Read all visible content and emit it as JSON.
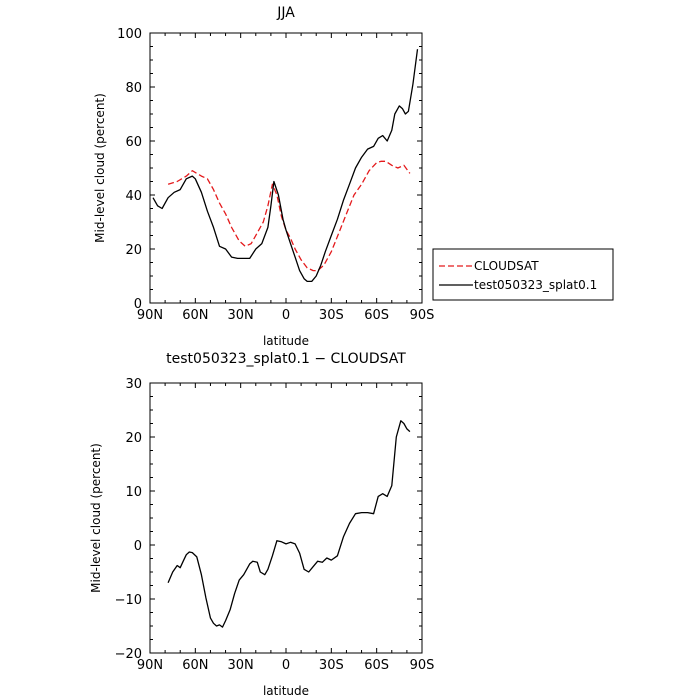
{
  "chart_data": [
    {
      "type": "line",
      "title": "JJA",
      "xlabel": "latitude",
      "ylabel": "Mid-level cloud (percent)",
      "xlim": [
        90,
        -90
      ],
      "ylim": [
        0,
        100
      ],
      "xticks": [
        90,
        60,
        30,
        0,
        -30,
        -60,
        -90
      ],
      "xtick_labels": [
        "90N",
        "60N",
        "30N",
        "0",
        "30S",
        "60S",
        "90S"
      ],
      "yticks": [
        0,
        20,
        40,
        60,
        80,
        100
      ],
      "ytick_labels": [
        "0",
        "20",
        "40",
        "60",
        "80",
        "100"
      ],
      "legend_position": "right",
      "series": [
        {
          "name": "CLOUDSAT",
          "color": "#e41a1c",
          "dash": "dashed",
          "x": [
            78,
            72,
            66,
            62,
            59,
            56,
            52,
            48,
            44,
            40,
            36,
            31,
            27,
            23,
            19,
            15,
            12,
            9,
            6,
            3,
            0,
            -3,
            -6,
            -10,
            -14,
            -18,
            -21,
            -25,
            -30,
            -35,
            -40,
            -45,
            -50,
            -55,
            -60,
            -63,
            -66,
            -70,
            -74,
            -78,
            -82
          ],
          "values": [
            44,
            45,
            47,
            49,
            48,
            47,
            46,
            42,
            37,
            33,
            28,
            23,
            21,
            22,
            26,
            30,
            36,
            44,
            40,
            32,
            27,
            24,
            20,
            16,
            13,
            12,
            12,
            14,
            19,
            26,
            33,
            40,
            44,
            49,
            52,
            52.5,
            52.5,
            51,
            50,
            51,
            48
          ]
        },
        {
          "name": "test050323_splat0.1",
          "color": "#000000",
          "dash": "solid",
          "x": [
            88,
            85,
            82,
            78,
            74,
            70,
            66,
            62,
            60,
            56,
            52,
            48,
            44,
            40,
            36,
            32,
            28,
            24,
            20,
            16,
            12,
            10,
            8,
            5,
            2,
            0,
            -3,
            -6,
            -9,
            -12,
            -14,
            -17,
            -20,
            -23,
            -26,
            -30,
            -34,
            -38,
            -42,
            -46,
            -50,
            -54,
            -58,
            -61,
            -64,
            -67,
            -70,
            -72,
            -75,
            -77,
            -79,
            -81,
            -84,
            -87
          ],
          "values": [
            39,
            36,
            35,
            39,
            41,
            42,
            46,
            47,
            46,
            41,
            34,
            28,
            21,
            20,
            17,
            16.5,
            16.5,
            16.5,
            20,
            22,
            28,
            36,
            45,
            40,
            31,
            27,
            22,
            17,
            12,
            9,
            8,
            8,
            10,
            14,
            19,
            25,
            31,
            38,
            44,
            50,
            54,
            57,
            58,
            61,
            62,
            60,
            64,
            70,
            73,
            72,
            70,
            71,
            81,
            94
          ]
        }
      ]
    },
    {
      "type": "line",
      "title": "test050323_splat0.1 − CLOUDSAT",
      "xlabel": "latitude",
      "ylabel": "Mid-level cloud (percent)",
      "xlim": [
        90,
        -90
      ],
      "ylim": [
        -20,
        30
      ],
      "xticks": [
        90,
        60,
        30,
        0,
        -30,
        -60,
        -90
      ],
      "xtick_labels": [
        "90N",
        "60N",
        "30N",
        "0",
        "30S",
        "60S",
        "90S"
      ],
      "yticks": [
        -20,
        -10,
        0,
        10,
        20,
        30
      ],
      "ytick_labels": [
        "−20",
        "−10",
        "0",
        "10",
        "20",
        "30"
      ],
      "series": [
        {
          "color": "#000000",
          "dash": "solid",
          "x": [
            78,
            75,
            72,
            70,
            68,
            66,
            64,
            62,
            59,
            56,
            53,
            50,
            48,
            46,
            44,
            42,
            40,
            37,
            34,
            31,
            28,
            24,
            22,
            19,
            17,
            14,
            12,
            9,
            6,
            3,
            0,
            -3,
            -6,
            -9,
            -12,
            -15,
            -18,
            -21,
            -24,
            -27,
            -30,
            -34,
            -38,
            -42,
            -46,
            -50,
            -54,
            -58,
            -61,
            -64,
            -67,
            -70,
            -73,
            -76,
            -78,
            -80,
            -82
          ],
          "values": [
            -7,
            -5,
            -3.8,
            -4.2,
            -3,
            -1.8,
            -1.3,
            -1.4,
            -2.2,
            -5.5,
            -9.8,
            -13.5,
            -14.5,
            -15,
            -14.8,
            -15.2,
            -14,
            -12,
            -9,
            -6.5,
            -5.5,
            -3.5,
            -3,
            -3.2,
            -5,
            -5.5,
            -4.5,
            -2,
            0.8,
            0.6,
            0.2,
            0.5,
            0.2,
            -1.5,
            -4.5,
            -5,
            -4,
            -3,
            -3.2,
            -2.4,
            -2.8,
            -2,
            1.5,
            4,
            5.8,
            6,
            6,
            5.8,
            9,
            9.5,
            9,
            11,
            20,
            23,
            22.5,
            21.5,
            21
          ]
        }
      ]
    }
  ]
}
